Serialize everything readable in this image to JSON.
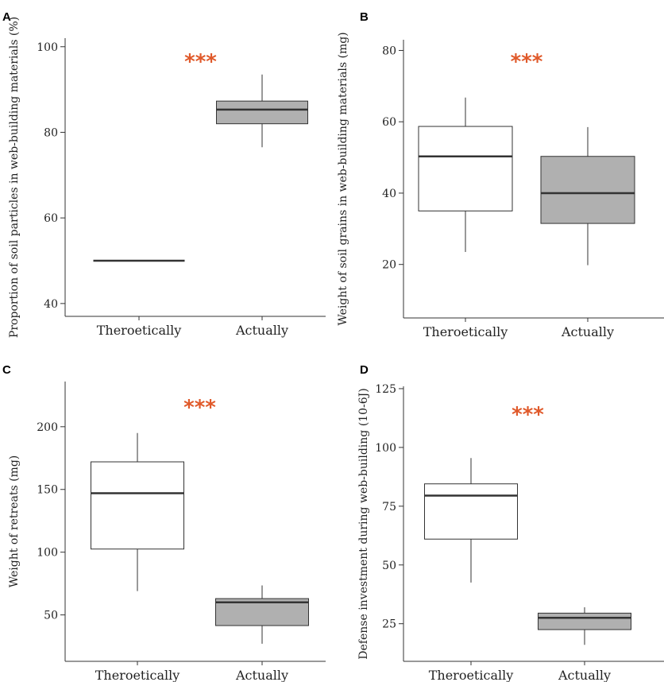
{
  "colors": {
    "theoretical_fill": "#ffffff",
    "actual_fill": "#b0b0b0",
    "significance": "#e05a2b",
    "axis": "#333333"
  },
  "chart_data": [
    {
      "type": "box",
      "panel": "A",
      "ylabel": "Proportion of soil particles in web-building materials (%)",
      "categories": [
        "Theroetically",
        "Actually"
      ],
      "ylim": [
        37,
        102
      ],
      "yticks": [
        40,
        60,
        80,
        100
      ],
      "significance": "***",
      "boxes": [
        {
          "min": 50,
          "q1": 50,
          "median": 50,
          "q3": 50,
          "max": 50
        },
        {
          "min": 76.5,
          "q1": 82,
          "median": 85.3,
          "q3": 87.3,
          "max": 93.5
        }
      ]
    },
    {
      "type": "box",
      "panel": "B",
      "ylabel": "Weight of soil grains in web-building materials (mg)",
      "categories": [
        "Theroetically",
        "Actually"
      ],
      "ylim": [
        5,
        83
      ],
      "yticks": [
        20,
        40,
        60,
        80
      ],
      "significance": "***",
      "boxes": [
        {
          "min": 23.5,
          "q1": 35,
          "median": 50.3,
          "q3": 58.7,
          "max": 66.8
        },
        {
          "min": 19.8,
          "q1": 31.5,
          "median": 40,
          "q3": 50.3,
          "max": 58.5
        }
      ]
    },
    {
      "type": "box",
      "panel": "C",
      "ylabel": "Weight of retreats (mg)",
      "categories": [
        "Theroetically",
        "Actually"
      ],
      "ylim": [
        13,
        236
      ],
      "yticks": [
        50,
        100,
        150,
        200
      ],
      "significance": "***",
      "boxes": [
        {
          "min": 69,
          "q1": 102.5,
          "median": 147,
          "q3": 172,
          "max": 195
        },
        {
          "min": 27,
          "q1": 41.5,
          "median": 60,
          "q3": 63,
          "max": 73.5
        }
      ]
    },
    {
      "type": "box",
      "panel": "D",
      "ylabel": "Defense investment during web-building (10-6J)",
      "categories": [
        "Theroetically",
        "Actually"
      ],
      "ylim": [
        9,
        126
      ],
      "yticks": [
        25,
        50,
        75,
        100,
        125
      ],
      "significance": "***",
      "boxes": [
        {
          "min": 42.5,
          "q1": 61,
          "median": 79.5,
          "q3": 84.5,
          "max": 95.5
        },
        {
          "min": 16,
          "q1": 22.5,
          "median": 27.5,
          "q3": 29.5,
          "max": 32
        }
      ]
    }
  ]
}
